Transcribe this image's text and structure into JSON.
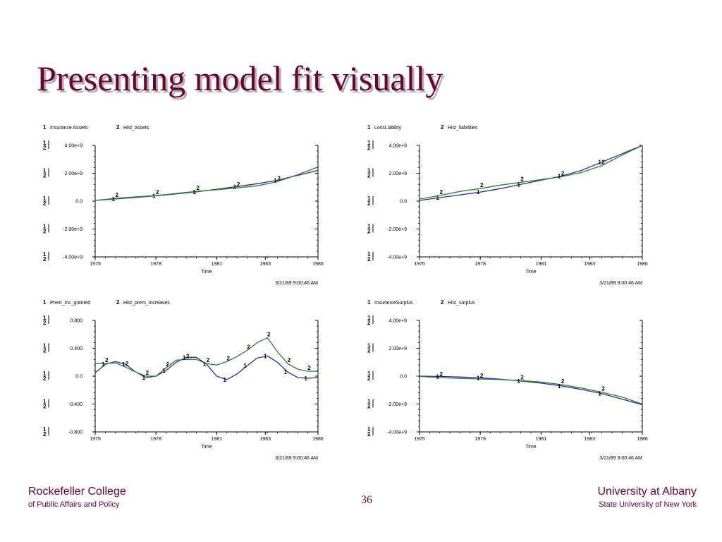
{
  "slide": {
    "title": "Presenting model fit visually",
    "page_number": "36",
    "footer_left": {
      "line1": "Rockefeller College",
      "line2": "of Public Affairs and Policy"
    },
    "footer_right": {
      "line1": "University at Albany",
      "line2": "State University of New York"
    }
  },
  "colors": {
    "series1": "#2a2aa8",
    "series2": "#2e7d32",
    "title": "#6b0033",
    "axis": "#000000"
  },
  "chart_data": [
    {
      "type": "line",
      "xlabel": "Time",
      "timestamp": "3/21/89  9:00:46 AM",
      "xlim": [
        1975,
        1986
      ],
      "x_ticks": [
        "1975",
        "1978",
        "1981",
        "1983",
        "1986"
      ],
      "x_tick_values": [
        1975,
        1978,
        1981,
        1983.4,
        1986
      ],
      "ylim": [
        -4000000000,
        4000000000
      ],
      "y_ticks": [
        "4.00e+9",
        "2.00e+9",
        "0.0",
        "-2.00e+9",
        "-4.00e+9"
      ],
      "y_tick_values": [
        4000000000,
        2000000000,
        0,
        -2000000000,
        -4000000000
      ],
      "series": [
        {
          "marker": "1",
          "name": "Insurance Assets",
          "x": [
            1975,
            1976,
            1977,
            1978,
            1979,
            1980,
            1981,
            1982,
            1983,
            1984,
            1985,
            1986
          ],
          "y": [
            50000000,
            160000000,
            270000000,
            380000000,
            520000000,
            670000000,
            850000000,
            1050000000,
            1250000000,
            1500000000,
            1850000000,
            2200000000
          ]
        },
        {
          "marker": "2",
          "name": "Hist_assets",
          "x": [
            1975,
            1976,
            1977,
            1978,
            1979,
            1980,
            1981,
            1982,
            1983,
            1984,
            1985,
            1986
          ],
          "y": [
            50000000,
            200000000,
            310000000,
            400000000,
            550000000,
            700000000,
            820000000,
            950000000,
            1100000000,
            1400000000,
            1900000000,
            2450000000
          ]
        }
      ]
    },
    {
      "type": "line",
      "xlabel": "Time",
      "timestamp": "3/21/89  9:00:46 AM",
      "xlim": [
        1975,
        1986
      ],
      "x_ticks": [
        "1975",
        "1978",
        "1981",
        "1983",
        "1986"
      ],
      "x_tick_values": [
        1975,
        1978,
        1981,
        1983.4,
        1986
      ],
      "ylim": [
        -4000000000,
        4000000000
      ],
      "y_ticks": [
        "4.00e+9",
        "2.00e+9",
        "0.0",
        "-2.00e+9",
        "-4.00e+9"
      ],
      "y_tick_values": [
        4000000000,
        2000000000,
        0,
        -2000000000,
        -4000000000
      ],
      "series": [
        {
          "marker": "1",
          "name": "LossLiability",
          "x": [
            1975,
            1976,
            1977,
            1978,
            1979,
            1980,
            1981,
            1982,
            1983,
            1984,
            1985,
            1986
          ],
          "y": [
            50000000,
            250000000,
            450000000,
            650000000,
            900000000,
            1200000000,
            1500000000,
            1800000000,
            2200000000,
            2800000000,
            3400000000,
            4050000000
          ]
        },
        {
          "marker": "2",
          "name": "Hist_liabilities",
          "x": [
            1975,
            1976,
            1977,
            1978,
            1979,
            1980,
            1981,
            1982,
            1983,
            1984,
            1985,
            1986
          ],
          "y": [
            150000000,
            400000000,
            700000000,
            900000000,
            1150000000,
            1350000000,
            1550000000,
            1750000000,
            2050000000,
            2550000000,
            3300000000,
            4050000000
          ]
        }
      ]
    },
    {
      "type": "line",
      "xlabel": "Time",
      "timestamp": "3/21/89  9:00:46 AM",
      "xlim": [
        1975,
        1986
      ],
      "x_ticks": [
        "1975",
        "1978",
        "1981",
        "1983",
        "1986"
      ],
      "x_tick_values": [
        1975,
        1978,
        1981,
        1983.4,
        1986
      ],
      "ylim": [
        -0.8,
        0.8
      ],
      "y_ticks": [
        "0.800",
        "0.400",
        "0.0",
        "-0.400",
        "-0.800"
      ],
      "y_tick_values": [
        0.8,
        0.4,
        0,
        -0.4,
        -0.8
      ],
      "series": [
        {
          "marker": "1",
          "name": "Prem_inc_granted",
          "x": [
            1975,
            1975.5,
            1976,
            1976.5,
            1977,
            1977.5,
            1978,
            1978.5,
            1979,
            1979.5,
            1980,
            1980.5,
            1981,
            1981.5,
            1982,
            1982.5,
            1983,
            1983.5,
            1984,
            1984.5,
            1985,
            1985.5,
            1986
          ],
          "y": [
            0.05,
            0.17,
            0.21,
            0.17,
            0.06,
            -0.02,
            0.0,
            0.08,
            0.2,
            0.27,
            0.27,
            0.17,
            0.0,
            -0.05,
            0.03,
            0.15,
            0.26,
            0.29,
            0.2,
            0.06,
            -0.02,
            -0.03,
            -0.02
          ]
        },
        {
          "marker": "2",
          "name": "Hist_prem_increases",
          "x": [
            1975,
            1975.5,
            1976,
            1976.5,
            1977,
            1977.5,
            1978,
            1978.5,
            1979,
            1979.5,
            1980,
            1980.5,
            1981,
            1981.5,
            1982,
            1982.5,
            1983,
            1983.5,
            1984,
            1984.5,
            1985,
            1985.5,
            1986
          ],
          "y": [
            0.18,
            0.18,
            0.19,
            0.13,
            0.06,
            0.0,
            0.0,
            0.12,
            0.23,
            0.24,
            0.24,
            0.18,
            0.16,
            0.21,
            0.28,
            0.37,
            0.48,
            0.55,
            0.35,
            0.18,
            0.1,
            0.07,
            0.07
          ]
        }
      ]
    },
    {
      "type": "line",
      "xlabel": "Time",
      "timestamp": "3/21/89  9:00:46 AM",
      "xlim": [
        1975,
        1986
      ],
      "x_ticks": [
        "1975",
        "1978",
        "1981",
        "1983",
        "1986"
      ],
      "x_tick_values": [
        1975,
        1978,
        1981,
        1983.4,
        1986
      ],
      "ylim": [
        -4000000000,
        4000000000
      ],
      "y_ticks": [
        "4.00e+9",
        "2.00e+9",
        "0.0",
        "-2.00e+9",
        "-4.00e+9"
      ],
      "y_tick_values": [
        4000000000,
        2000000000,
        0,
        -2000000000,
        -4000000000
      ],
      "series": [
        {
          "marker": "1",
          "name": "InsuranceSurplus",
          "x": [
            1975,
            1976,
            1977,
            1978,
            1979,
            1980,
            1981,
            1982,
            1983,
            1984,
            1985,
            1986
          ],
          "y": [
            0,
            -20000000,
            -60000000,
            -120000000,
            -220000000,
            -350000000,
            -500000000,
            -700000000,
            -950000000,
            -1250000000,
            -1650000000,
            -2050000000
          ]
        },
        {
          "marker": "2",
          "name": "Hist_surplus",
          "x": [
            1975,
            1976,
            1977,
            1978,
            1979,
            1980,
            1981,
            1982,
            1983,
            1984,
            1985,
            1986
          ],
          "y": [
            -20000000,
            -100000000,
            -160000000,
            -200000000,
            -250000000,
            -320000000,
            -420000000,
            -600000000,
            -850000000,
            -1150000000,
            -1500000000,
            -2000000000
          ]
        }
      ]
    }
  ]
}
